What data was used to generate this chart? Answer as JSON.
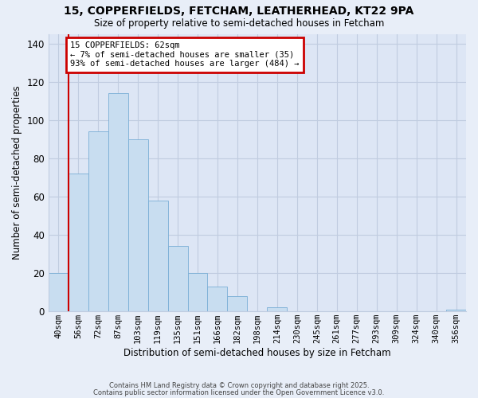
{
  "title1": "15, COPPERFIELDS, FETCHAM, LEATHERHEAD, KT22 9PA",
  "title2": "Size of property relative to semi-detached houses in Fetcham",
  "xlabel": "Distribution of semi-detached houses by size in Fetcham",
  "ylabel": "Number of semi-detached properties",
  "bin_labels": [
    "40sqm",
    "56sqm",
    "72sqm",
    "87sqm",
    "103sqm",
    "119sqm",
    "135sqm",
    "151sqm",
    "166sqm",
    "182sqm",
    "198sqm",
    "214sqm",
    "230sqm",
    "245sqm",
    "261sqm",
    "277sqm",
    "293sqm",
    "309sqm",
    "324sqm",
    "340sqm",
    "356sqm"
  ],
  "bar_heights": [
    20,
    72,
    94,
    114,
    90,
    58,
    34,
    20,
    13,
    8,
    0,
    2,
    0,
    0,
    0,
    0,
    0,
    0,
    0,
    0,
    1
  ],
  "bar_color": "#c8ddf0",
  "bar_edge_color": "#7aaed6",
  "property_line_x": 1.0,
  "annotation_title": "15 COPPERFIELDS: 62sqm",
  "annotation_line1": "← 7% of semi-detached houses are smaller (35)",
  "annotation_line2": "93% of semi-detached houses are larger (484) →",
  "annotation_box_color": "#ffffff",
  "annotation_border_color": "#cc0000",
  "vline_color": "#cc0000",
  "ylim": [
    0,
    145
  ],
  "yticks": [
    0,
    20,
    40,
    60,
    80,
    100,
    120,
    140
  ],
  "footnote1": "Contains HM Land Registry data © Crown copyright and database right 2025.",
  "footnote2": "Contains public sector information licensed under the Open Government Licence v3.0.",
  "bg_color": "#e8eef8",
  "plot_bg_color": "#dde6f5",
  "grid_color": "#c0cce0"
}
